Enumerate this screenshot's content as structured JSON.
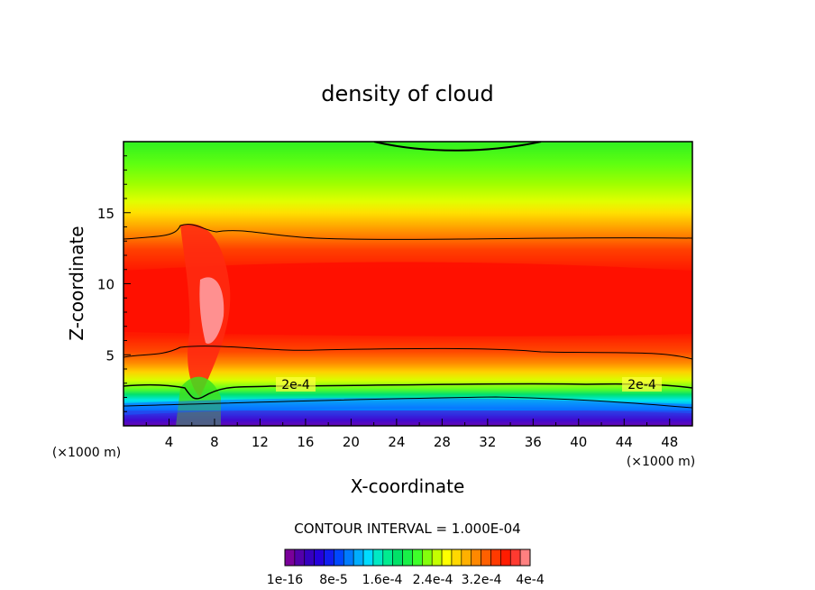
{
  "chart_data": {
    "type": "heatmap",
    "title": "density of cloud",
    "xlabel": "X-coordinate",
    "ylabel": "Z-coordinate",
    "x_unit": "(×1000 m)",
    "x_unit_right": "(×1000 m)",
    "xlim": [
      0,
      50
    ],
    "ylim": [
      0,
      20
    ],
    "x_ticks": [
      "4",
      "8",
      "12",
      "16",
      "20",
      "24",
      "28",
      "32",
      "36",
      "40",
      "44",
      "48"
    ],
    "y_ticks": [
      "5",
      "10",
      "15"
    ],
    "contour_interval_text": "CONTOUR INTERVAL = 1.000E-04",
    "contour_labels": [
      "2e-4",
      "2e-4"
    ],
    "colorbar_labels": [
      "1e-16",
      "8e-5",
      "1.6e-4",
      "2.4e-4",
      "3.2e-4",
      "4e-4"
    ],
    "colorbar_levels": 25,
    "grid": false,
    "colormap": [
      "#7a009a",
      "#3c00b4",
      "#2000e0",
      "#003cff",
      "#0090ff",
      "#00dcff",
      "#00f0a0",
      "#00e060",
      "#30ff30",
      "#a0ff00",
      "#ffff00",
      "#ffc000",
      "#ff8000",
      "#ff4000",
      "#ff1000",
      "#ff8080"
    ]
  }
}
